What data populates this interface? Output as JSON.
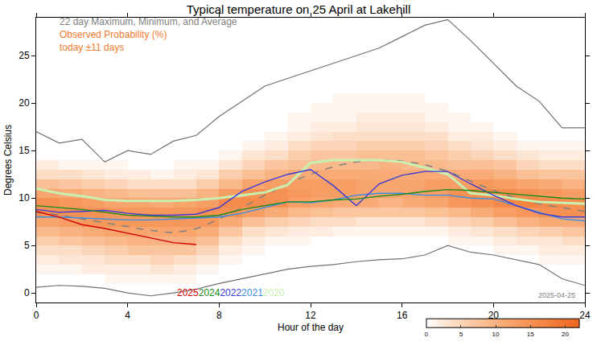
{
  "chart_data": {
    "type": "line",
    "title": "Typical temperature on 25 April at Lakehill",
    "x_label": "Hour of the day",
    "y_label": "Degrees Celsius",
    "xlim": [
      0,
      24
    ],
    "xticks": [
      0,
      4,
      8,
      12,
      16,
      20,
      24
    ],
    "ylim": [
      -1,
      29
    ],
    "yticks": [
      0,
      5,
      10,
      15,
      20,
      25
    ],
    "grid": false,
    "annotations": [
      {
        "text": "22 day Maximum, Minimum, and Average",
        "color": "#808080"
      },
      {
        "text": "Observed Probability (%)",
        "color": "#f07a30"
      },
      {
        "text": "today ±11 days",
        "color": "#f07a30"
      }
    ],
    "date_stamp": "2025-04-25",
    "probability": {
      "x": [
        0.5,
        1.5,
        2.5,
        3.5,
        4.5,
        5.5,
        6.5,
        7.5,
        8.5,
        9.5,
        10.5,
        11.5,
        12.5,
        13.5,
        14.5,
        15.5,
        16.5,
        17.5,
        18.5,
        19.5,
        20.5,
        21.5,
        22.5,
        23.5
      ],
      "y": [
        1.5,
        2.5,
        3.5,
        4.5,
        5.5,
        6.5,
        7.5,
        8.5,
        9.5,
        10.5,
        11.5,
        12.5,
        13.5,
        14.5,
        15.5,
        16.5,
        17.5,
        18.5,
        19.5,
        20.5,
        21.5
      ],
      "cells_by_hour": [
        [
          0,
          1,
          2,
          4,
          6,
          9,
          12,
          15,
          15,
          12,
          8,
          4,
          2,
          0,
          0,
          0,
          0,
          0,
          0,
          0,
          0
        ],
        [
          0,
          1,
          3,
          4,
          7,
          10,
          13,
          15,
          14,
          11,
          7,
          4,
          1,
          0,
          0,
          0,
          0,
          0,
          0,
          0,
          0
        ],
        [
          0,
          2,
          3,
          5,
          8,
          11,
          14,
          15,
          13,
          10,
          6,
          3,
          1,
          0,
          0,
          0,
          0,
          0,
          0,
          0,
          0
        ],
        [
          1,
          2,
          4,
          6,
          9,
          12,
          14,
          14,
          12,
          9,
          5,
          2,
          1,
          0,
          0,
          0,
          0,
          0,
          0,
          0,
          0
        ],
        [
          1,
          2,
          4,
          7,
          10,
          12,
          14,
          14,
          12,
          8,
          4,
          2,
          0,
          0,
          0,
          0,
          0,
          0,
          0,
          0,
          0
        ],
        [
          1,
          3,
          5,
          7,
          10,
          12,
          14,
          14,
          11,
          8,
          4,
          1,
          0,
          0,
          0,
          0,
          0,
          0,
          0,
          0,
          0
        ],
        [
          1,
          2,
          4,
          7,
          10,
          12,
          14,
          14,
          12,
          8,
          4,
          2,
          1,
          0,
          0,
          0,
          0,
          0,
          0,
          0,
          0
        ],
        [
          0,
          1,
          3,
          5,
          8,
          11,
          14,
          15,
          13,
          10,
          6,
          3,
          1,
          0,
          0,
          0,
          0,
          0,
          0,
          0,
          0
        ],
        [
          0,
          0,
          1,
          2,
          4,
          7,
          11,
          15,
          16,
          13,
          9,
          6,
          3,
          1,
          0,
          0,
          0,
          0,
          0,
          0,
          0
        ],
        [
          0,
          0,
          0,
          1,
          2,
          4,
          8,
          13,
          16,
          15,
          12,
          8,
          5,
          3,
          1,
          0,
          0,
          0,
          0,
          0,
          0
        ],
        [
          0,
          0,
          0,
          0,
          1,
          3,
          6,
          11,
          15,
          15,
          13,
          10,
          7,
          4,
          2,
          1,
          0,
          0,
          0,
          0,
          0
        ],
        [
          0,
          0,
          0,
          0,
          1,
          2,
          5,
          9,
          13,
          14,
          13,
          11,
          8,
          6,
          4,
          2,
          1,
          1,
          0,
          0,
          0
        ],
        [
          0,
          0,
          0,
          0,
          0,
          2,
          4,
          8,
          12,
          13,
          13,
          11,
          9,
          7,
          5,
          3,
          2,
          1,
          1,
          0,
          0
        ],
        [
          0,
          0,
          0,
          0,
          0,
          1,
          4,
          7,
          11,
          13,
          13,
          11,
          9,
          7,
          5,
          4,
          2,
          1,
          1,
          1,
          0
        ],
        [
          0,
          0,
          0,
          0,
          0,
          1,
          3,
          7,
          11,
          12,
          12,
          11,
          9,
          8,
          6,
          4,
          3,
          2,
          1,
          1,
          0
        ],
        [
          0,
          0,
          0,
          0,
          0,
          1,
          3,
          7,
          10,
          12,
          12,
          11,
          10,
          8,
          6,
          4,
          3,
          2,
          1,
          1,
          0
        ],
        [
          0,
          0,
          0,
          0,
          0,
          1,
          3,
          7,
          11,
          12,
          12,
          11,
          9,
          8,
          6,
          4,
          3,
          2,
          1,
          1,
          0
        ],
        [
          0,
          0,
          0,
          0,
          0,
          1,
          4,
          8,
          12,
          13,
          13,
          11,
          9,
          7,
          5,
          4,
          2,
          1,
          1,
          0,
          0
        ],
        [
          0,
          0,
          0,
          0,
          1,
          2,
          5,
          9,
          14,
          15,
          13,
          11,
          8,
          6,
          4,
          2,
          1,
          1,
          0,
          0,
          0
        ],
        [
          0,
          0,
          0,
          0,
          1,
          3,
          6,
          11,
          15,
          16,
          14,
          11,
          8,
          5,
          3,
          2,
          1,
          0,
          0,
          0,
          0
        ],
        [
          0,
          0,
          0,
          1,
          2,
          4,
          8,
          13,
          16,
          16,
          13,
          10,
          7,
          4,
          2,
          1,
          0,
          0,
          0,
          0,
          0
        ],
        [
          0,
          0,
          0,
          1,
          3,
          5,
          10,
          14,
          17,
          15,
          12,
          8,
          5,
          3,
          1,
          0,
          0,
          0,
          0,
          0,
          0
        ],
        [
          0,
          0,
          1,
          2,
          3,
          6,
          11,
          15,
          16,
          14,
          11,
          7,
          4,
          2,
          1,
          0,
          0,
          0,
          0,
          0,
          0
        ],
        [
          0,
          0,
          1,
          2,
          4,
          7,
          11,
          15,
          15,
          13,
          10,
          7,
          4,
          2,
          1,
          0,
          0,
          0,
          0,
          0,
          0
        ]
      ],
      "zlim": [
        0,
        22
      ],
      "zticks": [
        0,
        5,
        10,
        15,
        20
      ]
    },
    "x": [
      0,
      1,
      2,
      3,
      4,
      5,
      6,
      7,
      8,
      9,
      10,
      11,
      12,
      13,
      14,
      15,
      16,
      17,
      18,
      19,
      20,
      21,
      22,
      23,
      24
    ],
    "envelope": {
      "color": "#707070",
      "maximum": [
        17,
        15.8,
        16.2,
        13.8,
        15,
        14.6,
        16,
        16.6,
        18.6,
        20.2,
        21.8,
        22.6,
        23.4,
        24.2,
        25,
        25.8,
        27,
        28.2,
        28.8,
        26.6,
        24.2,
        21.8,
        20.2,
        17.4,
        17.4
      ],
      "minimum": [
        0.6,
        0.8,
        0.7,
        0.5,
        0,
        -0.3,
        0,
        0.4,
        1,
        1.5,
        2,
        2.5,
        2.8,
        3,
        3.3,
        3.5,
        3.6,
        4,
        5,
        4.3,
        4,
        3.5,
        3,
        1.5,
        0.8
      ]
    },
    "average": {
      "color": "#808080",
      "line_style": "dashed",
      "values": [
        8.5,
        8.2,
        7.8,
        7.4,
        7,
        6.6,
        6.4,
        6.8,
        7.8,
        9,
        10.3,
        11.5,
        12.5,
        13.3,
        13.8,
        14,
        13.9,
        13.5,
        12.8,
        11.8,
        10.8,
        10,
        9.4,
        9,
        8.6
      ]
    },
    "series": [
      {
        "name": "2025",
        "color": "#d40000",
        "values": [
          8.6,
          8,
          7.2,
          6.8,
          6.3,
          5.8,
          5.3,
          5.1,
          null,
          null,
          null,
          null,
          null,
          null,
          null,
          null,
          null,
          null,
          null,
          null,
          null,
          null,
          null,
          null,
          null
        ]
      },
      {
        "name": "2024",
        "color": "#1a8a1a",
        "values": [
          9.2,
          9,
          8.8,
          8.5,
          8.2,
          8.1,
          8,
          8,
          8.2,
          8.8,
          9.2,
          9.6,
          9.6,
          9.8,
          9.9,
          10.2,
          10.4,
          10.7,
          10.9,
          10.8,
          10.6,
          10.4,
          10.2,
          10,
          9.9
        ]
      },
      {
        "name": "2022",
        "color": "#3a3ad8",
        "values": [
          8.8,
          8.5,
          8.6,
          8.7,
          8.4,
          8.2,
          8.2,
          8.3,
          9,
          10.7,
          11.7,
          12.5,
          13,
          11.3,
          9.2,
          11.5,
          12.4,
          12.8,
          12.8,
          11.5,
          10.3,
          9.2,
          8.4,
          8,
          8
        ]
      },
      {
        "name": "2021",
        "color": "#3a8ee8",
        "values": [
          8,
          8,
          7.9,
          7.8,
          7.7,
          7.7,
          7.8,
          7.9,
          8,
          8.4,
          9,
          9.6,
          9.5,
          9.8,
          10.3,
          10.5,
          10.5,
          10.3,
          10.3,
          10,
          9.9,
          9.2,
          8.5,
          7.8,
          7.6
        ]
      },
      {
        "name": "2020",
        "color": "#c8f0b0",
        "values": [
          11,
          10.5,
          10.2,
          9.8,
          9.7,
          9.7,
          9.7,
          9.8,
          10,
          10.3,
          10.6,
          11.4,
          13.7,
          14,
          14,
          14,
          13.8,
          13.2,
          12.5,
          10.5,
          10.3,
          9.9,
          9.6,
          9.5,
          9.4
        ]
      }
    ]
  }
}
